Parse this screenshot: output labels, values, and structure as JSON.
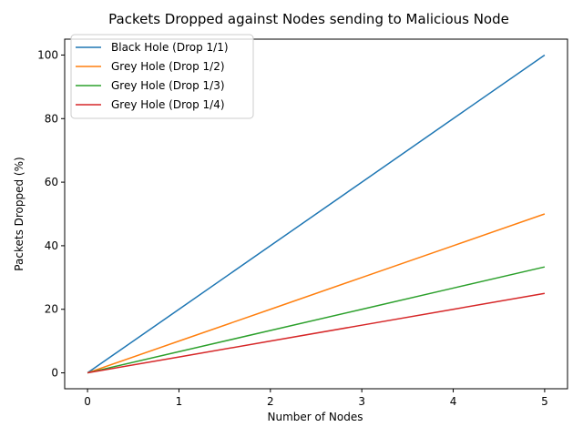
{
  "chart_data": {
    "type": "line",
    "title": "Packets Dropped against Nodes sending to Malicious Node",
    "xlabel": "Number of Nodes",
    "ylabel": "Packets Dropped (%)",
    "xlim": [
      -0.25,
      5.25
    ],
    "ylim": [
      -5,
      105
    ],
    "xticks": [
      0,
      1,
      2,
      3,
      4,
      5
    ],
    "yticks": [
      0,
      20,
      40,
      60,
      80,
      100
    ],
    "grid": false,
    "legend_position": "upper-left",
    "x": [
      0,
      1,
      2,
      3,
      4,
      5
    ],
    "series": [
      {
        "name": "Black Hole (Drop 1/1)",
        "color": "#1f77b4",
        "values": [
          0,
          20,
          40,
          60,
          80,
          100
        ]
      },
      {
        "name": "Grey Hole (Drop 1/2)",
        "color": "#ff7f0e",
        "values": [
          0,
          10,
          20,
          30,
          40,
          50
        ]
      },
      {
        "name": "Grey Hole (Drop 1/3)",
        "color": "#2ca02c",
        "values": [
          0,
          6.67,
          13.33,
          20,
          26.67,
          33.33
        ]
      },
      {
        "name": "Grey Hole (Drop 1/4)",
        "color": "#d62728",
        "values": [
          0,
          5,
          10,
          15,
          20,
          25
        ]
      }
    ]
  }
}
